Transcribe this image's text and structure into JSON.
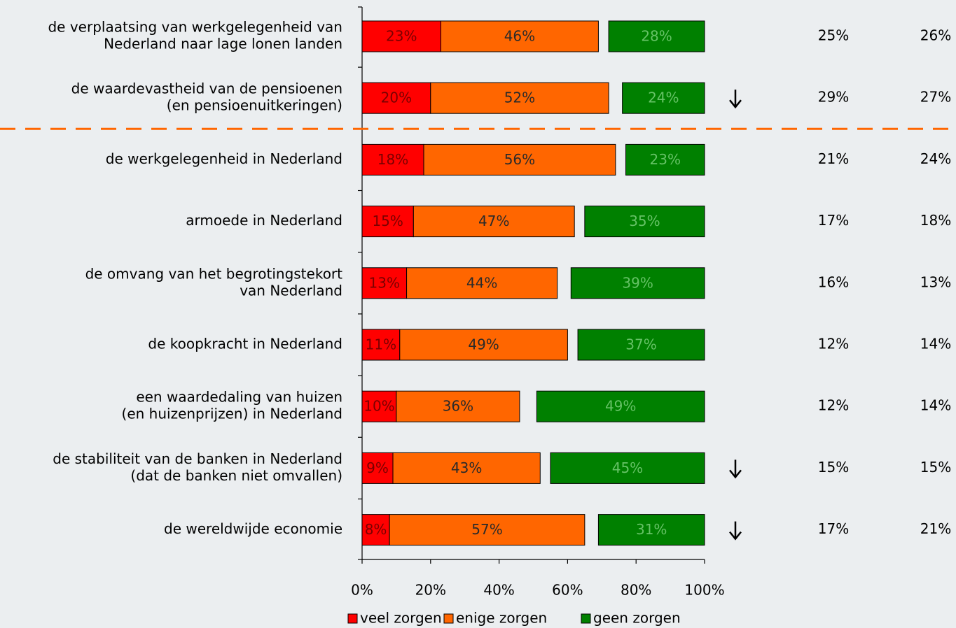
{
  "chart_data": {
    "type": "bar",
    "orientation": "horizontal",
    "categories": [
      [
        "de verplaatsing van werkgelegenheid van",
        "Nederland naar lage lonen landen"
      ],
      [
        "de waardevastheid van de pensioenen",
        "(en pensioenuitkeringen)"
      ],
      [
        "de werkgelegenheid in Nederland"
      ],
      [
        "armoede in Nederland"
      ],
      [
        "de omvang van het begrotingstekort",
        "van Nederland"
      ],
      [
        "de koopkracht in Nederland"
      ],
      [
        "een waardedaling van huizen",
        "(en huizenprijzen) in Nederland"
      ],
      [
        "de stabiliteit van de banken in Nederland",
        "(dat de banken niet omvallen)"
      ],
      [
        "de wereldwijde economie"
      ]
    ],
    "series": [
      {
        "name": "veel zorgen",
        "color": "#ff0000",
        "label_color": "#7a0000",
        "anchor": "left",
        "values": [
          23,
          20,
          18,
          15,
          13,
          11,
          10,
          9,
          8
        ],
        "value_labels": [
          "23%",
          "20%",
          "18%",
          "15%",
          "13%",
          "11%",
          "10%",
          "9%",
          "8%"
        ]
      },
      {
        "name": "enige zorgen",
        "color": "#ff6600",
        "label_color": "#2a2a2a",
        "anchor": "left",
        "values": [
          46,
          52,
          56,
          47,
          44,
          49,
          36,
          43,
          57
        ],
        "value_labels": [
          "46%",
          "52%",
          "56%",
          "47%",
          "44%",
          "49%",
          "36%",
          "43%",
          "57%"
        ]
      },
      {
        "name": "geen zorgen",
        "color": "#008000",
        "label_color": "#66c266",
        "anchor": "right",
        "values": [
          28,
          24,
          23,
          35,
          39,
          37,
          49,
          45,
          31
        ],
        "value_labels": [
          "28%",
          "24%",
          "23%",
          "35%",
          "39%",
          "37%",
          "49%",
          "45%",
          "31%"
        ]
      }
    ],
    "xlim": [
      0,
      100
    ],
    "xticks": [
      {
        "value": 0,
        "label": "0%"
      },
      {
        "value": 20,
        "label": "20%"
      },
      {
        "value": 40,
        "label": "40%"
      },
      {
        "value": 60,
        "label": "60%"
      },
      {
        "value": 80,
        "label": "80%"
      },
      {
        "value": 100,
        "label": "100%"
      }
    ],
    "columns": [
      {
        "values": [
          25,
          29,
          21,
          17,
          16,
          12,
          12,
          15,
          17
        ],
        "value_labels": [
          "25%",
          "29%",
          "21%",
          "17%",
          "16%",
          "12%",
          "12%",
          "15%",
          "17%"
        ]
      },
      {
        "values": [
          26,
          27,
          24,
          18,
          13,
          14,
          14,
          15,
          21
        ],
        "value_labels": [
          "26%",
          "27%",
          "24%",
          "18%",
          "13%",
          "14%",
          "14%",
          "15%",
          "21%"
        ]
      }
    ],
    "arrow_rows": [
      1,
      7,
      8
    ],
    "separator_after": 1,
    "separator_color": "#ff6600",
    "legend": "bottom"
  }
}
